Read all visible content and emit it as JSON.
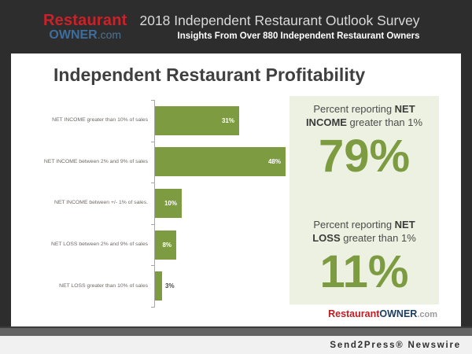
{
  "header": {
    "logo": {
      "restaurant": "Restaurant",
      "owner": "OWNER",
      "com": ".com"
    },
    "title": "2018 Independent Restaurant Outlook Survey",
    "subtitle": "Insights From Over 880 Independent Restaurant Owners"
  },
  "main": {
    "heading": "Independent Restaurant Profitability"
  },
  "chart_data": {
    "type": "bar",
    "orientation": "horizontal",
    "title": "Independent Restaurant Profitability",
    "categories": [
      "NET INCOME greater than 10% of sales",
      "NET INCOME between 2% and 9% of sales",
      "NET INCOME between +/- 1% of sales.",
      "NET LOSS between 2% and 9% of sales",
      "NET LOSS greater than 10% of sales"
    ],
    "values": [
      31,
      48,
      10,
      8,
      3
    ],
    "value_labels": [
      "31%",
      "48%",
      "10%",
      "8%",
      "3%"
    ],
    "bar_color": "#7d9c42",
    "axis_color": "#a8a8a8",
    "xlim": [
      0,
      50
    ],
    "grid": false,
    "legend": false
  },
  "panel": {
    "background": "#edf1e1",
    "accent_color": "#7d9c42",
    "stats": [
      {
        "prefix": "Percent reporting ",
        "bold": "NET INCOME",
        "suffix": " greater than 1%",
        "value": "79%"
      },
      {
        "prefix": "Percent reporting ",
        "bold": "NET LOSS",
        "suffix": " greater than 1%",
        "value": "11%"
      }
    ],
    "brand": {
      "restaurant": "Restaurant",
      "owner": "OWNER",
      "com": ".com"
    }
  },
  "footer": {
    "credit": "Send2Press® Newswire"
  }
}
